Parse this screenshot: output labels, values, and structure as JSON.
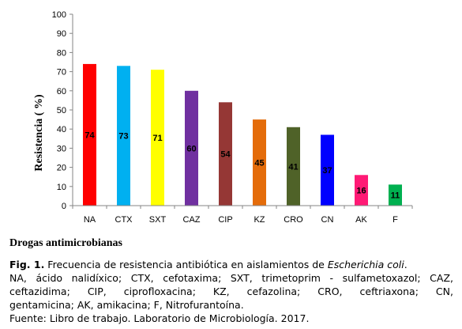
{
  "chart_data": {
    "type": "bar",
    "categories": [
      "NA",
      "CTX",
      "SXT",
      "CAZ",
      "CIP",
      "KZ",
      "CRO",
      "CN",
      "AK",
      "F"
    ],
    "values": [
      74,
      73,
      71,
      60,
      54,
      45,
      41,
      37,
      16,
      11
    ],
    "data_labels": [
      "74",
      "73",
      "71",
      "60",
      "54",
      "45",
      "41",
      "37",
      "16",
      "11"
    ],
    "colors": [
      "#ff0000",
      "#00b0f0",
      "#ffff00",
      "#7030a0",
      "#953735",
      "#e46c0a",
      "#4f6228",
      "#0000ff",
      "#ff1a75",
      "#00b050"
    ],
    "label_colors": [
      "#000000",
      "#000000",
      "#000000",
      "#000000",
      "#000000",
      "#000000",
      "#000000",
      "#000000",
      "#000000",
      "#000000"
    ],
    "ylabel": "Resistencia ( %)",
    "xlabel": "Drogas antimicrobianas",
    "ylim": [
      0,
      100
    ],
    "yticks": [
      0,
      10,
      20,
      30,
      40,
      50,
      60,
      70,
      80,
      90,
      100
    ],
    "grid": false
  },
  "caption": {
    "fig_label": "Fig. 1.",
    "fig_text": " Frecuencia de resistencia antibiótica en aislamientos de ",
    "organism": "Escherichia coli",
    "fig_end": ".",
    "abbrev_line1": "NA, ácido nalidíxico; CTX, cefotaxima; SXT, trimetoprim - sulfametoxazol; CAZ,",
    "abbrev_line2": "ceftazidima; CIP, ciprofloxacina; KZ, cefazolina; CRO, ceftriaxona; CN,",
    "abbrev_line3": "gentamicina; AK, amikacina; F, Nitrofurantoína.",
    "source": "Fuente: Libro de trabajo. Laboratorio de Microbiología. 2017."
  }
}
